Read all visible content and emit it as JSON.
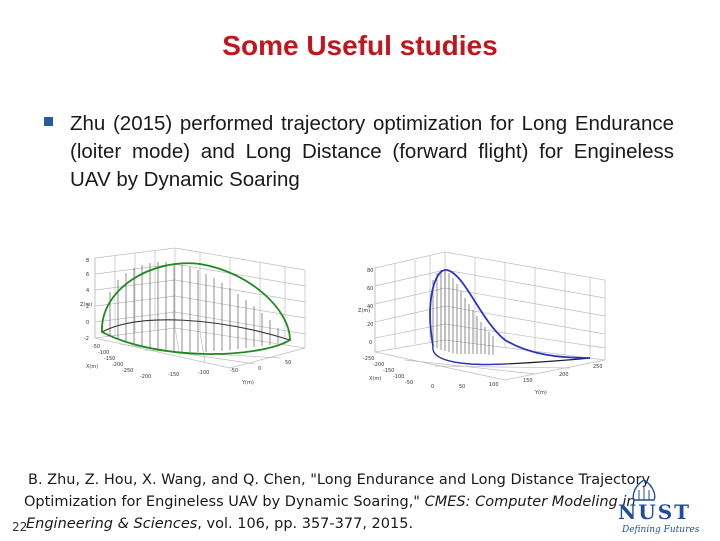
{
  "slide": {
    "title": "Some Useful studies",
    "bullet_text": "Zhu (2015) performed trajectory optimization for Long Endurance (loiter mode) and Long Distance (forward flight) for Engineless UAV by Dynamic Soaring",
    "reference": {
      "line1": "B. Zhu, Z. Hou, X. Wang, and Q. Chen, \"Long Endurance and Long Distance Trajectory",
      "line2": "Optimization for Engineless UAV by Dynamic Soaring,\" ",
      "line2_journal": "CMES: Computer Modeling in",
      "line3_journal": "Engineering & Sciences",
      "line3_rest": ", vol. 106, pp. 357-377, 2015."
    },
    "slide_number": "22",
    "logo": {
      "name": "NUST",
      "tagline": "Defining Futures"
    }
  },
  "figures": {
    "left": {
      "curve_color": "#1f8a1f",
      "z_ticks": [
        "8",
        "6",
        "4",
        "2",
        "0",
        "-2"
      ],
      "z_label": "Z(m)",
      "x_ticks": [
        "-50",
        "-100",
        "-150",
        "-200",
        "-250"
      ],
      "x_label": "X(m)",
      "y_ticks": [
        "-200",
        "-150",
        "-100",
        "-50",
        "0",
        "50"
      ],
      "y_label": "Y(m)"
    },
    "right": {
      "curve_color": "#2a35c4",
      "z_ticks": [
        "80",
        "60",
        "40",
        "20",
        "0"
      ],
      "z_label": "Z(m)",
      "x_ticks": [
        "-250",
        "-200",
        "-150",
        "-100",
        "-50"
      ],
      "x_label": "X(m)",
      "y_ticks": [
        "0",
        "50",
        "100",
        "150",
        "200",
        "250"
      ],
      "y_label": "Y(m)"
    }
  },
  "colors": {
    "title": "#c0161d",
    "bullet": "#2a5b9c",
    "logo": "#1f4e9c"
  }
}
